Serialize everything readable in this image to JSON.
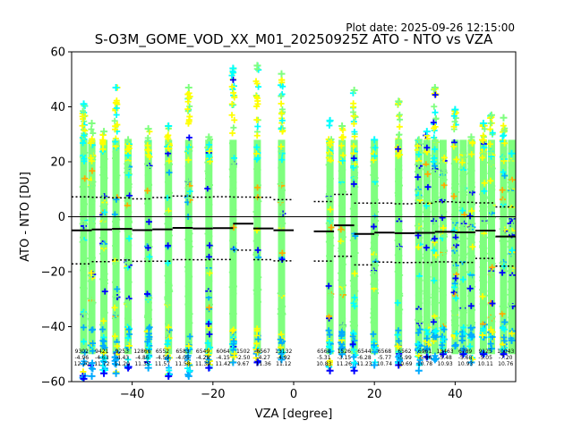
{
  "chart_data": {
    "type": "scatter",
    "plot_date": "Plot date: 2025-09-26 12:15:00",
    "title": "S-O3M_GOME_VOD_XX_M01_20250925Z ATO - NTO vs VZA",
    "xlabel": "VZA [degree]",
    "ylabel": "ATO - NTO [DU]",
    "xlim": [
      -55,
      55
    ],
    "ylim": [
      -60,
      60
    ],
    "xticks": [
      -40,
      -20,
      0,
      20,
      40
    ],
    "yticks": [
      -60,
      -40,
      -20,
      0,
      20,
      40,
      60
    ],
    "marker": "+",
    "colormap": [
      "#0000ff",
      "#00aaff",
      "#00ffff",
      "#7fff7f",
      "#ffff00",
      "#ffaa00"
    ],
    "zero_line": 0,
    "bins": [
      {
        "x": -52.5,
        "count": "9302",
        "mean": -4.96,
        "median": "-4.96",
        "std": "12.20",
        "mean_minus_std": -17.16,
        "mean_plus_std": 7.24
      },
      {
        "x": -47.5,
        "count": "9421",
        "mean": -4.63,
        "median": "-4.63",
        "std": "11.72",
        "mean_minus_std": -16.35,
        "mean_plus_std": 7.09
      },
      {
        "x": -42.5,
        "count": "9253",
        "mean": -4.43,
        "median": "-4.43",
        "std": "11.29",
        "mean_minus_std": -15.72,
        "mean_plus_std": 6.86
      },
      {
        "x": -37.5,
        "count": "12866",
        "mean": -4.86,
        "median": "-4.86",
        "std": "11.35",
        "mean_minus_std": -16.21,
        "mean_plus_std": 6.49
      },
      {
        "x": -32.5,
        "count": "6552",
        "mean": -4.59,
        "median": "-4.59",
        "std": "11.57",
        "mean_minus_std": -16.16,
        "mean_plus_std": 6.98
      },
      {
        "x": -27.5,
        "count": "6583",
        "mean": -4.05,
        "median": "-4.05",
        "std": "11.58",
        "mean_minus_std": -15.63,
        "mean_plus_std": 7.53
      },
      {
        "x": -22.5,
        "count": "6549",
        "mean": -4.28,
        "median": "-4.28",
        "std": "11.39",
        "mean_minus_std": -15.67,
        "mean_plus_std": 7.11
      },
      {
        "x": -17.5,
        "count": "6064",
        "mean": -4.15,
        "median": "-4.15",
        "std": "11.42",
        "mean_minus_std": -15.57,
        "mean_plus_std": 7.27
      },
      {
        "x": -12.5,
        "count": "1502",
        "mean": -2.5,
        "median": "-2.50",
        "std": "9.67",
        "mean_minus_std": -12.17,
        "mean_plus_std": 7.17
      },
      {
        "x": -7.5,
        "count": "6567",
        "mean": -4.27,
        "median": "-4.27",
        "std": "11.36",
        "mean_minus_std": -15.63,
        "mean_plus_std": 7.09
      },
      {
        "x": -2.5,
        "count": "13132",
        "mean": -4.92,
        "median": "-4.92",
        "std": "11.12",
        "mean_minus_std": -16.04,
        "mean_plus_std": 6.2
      },
      {
        "x": 7.5,
        "count": "6568",
        "mean": -5.31,
        "median": "-5.31",
        "std": "10.83",
        "mean_minus_std": -16.14,
        "mean_plus_std": 5.52
      },
      {
        "x": 12.5,
        "count": "1526",
        "mean": -3.15,
        "median": "-3.15",
        "std": "11.26",
        "mean_minus_std": -14.41,
        "mean_plus_std": 8.11
      },
      {
        "x": 17.5,
        "count": "6544",
        "mean": -6.28,
        "median": "-6.28",
        "std": "11.23",
        "mean_minus_std": -17.51,
        "mean_plus_std": 4.95
      },
      {
        "x": 22.5,
        "count": "6568",
        "mean": -5.77,
        "median": "-5.77",
        "std": "10.74",
        "mean_minus_std": -16.51,
        "mean_plus_std": 4.97
      },
      {
        "x": 27.5,
        "count": "6562",
        "mean": -5.99,
        "median": "-5.99",
        "std": "10.69",
        "mean_minus_std": -16.68,
        "mean_plus_std": 4.7
      },
      {
        "x": 32.5,
        "count": "6961",
        "mean": -5.86,
        "median": "-5.86",
        "std": "10.78",
        "mean_minus_std": -16.64,
        "mean_plus_std": 4.92
      },
      {
        "x": 37.5,
        "count": "13463",
        "mean": -5.48,
        "median": "-5.48",
        "std": "10.93",
        "mean_minus_std": -16.41,
        "mean_plus_std": 5.45
      },
      {
        "x": 42.5,
        "count": "6789",
        "mean": -5.68,
        "median": "-5.68",
        "std": "10.93",
        "mean_minus_std": -16.61,
        "mean_plus_std": 5.25
      },
      {
        "x": 47.5,
        "count": "9125",
        "mean": -5.05,
        "median": "-5.05",
        "std": "10.11",
        "mean_minus_std": -15.16,
        "mean_plus_std": 5.06
      },
      {
        "x": 52.5,
        "count": "10043",
        "mean": -7.2,
        "median": "-7.20",
        "std": "10.76",
        "mean_minus_std": -17.96,
        "mean_plus_std": 3.56
      }
    ],
    "scatter_columns": [
      {
        "x": -52,
        "ymin": -59,
        "ymax": 41
      },
      {
        "x": -50,
        "ymin": -58,
        "ymax": 34
      },
      {
        "x": -47,
        "ymin": -57,
        "ymax": 31
      },
      {
        "x": -44,
        "ymin": -57,
        "ymax": 47
      },
      {
        "x": -41,
        "ymin": -55,
        "ymax": 28
      },
      {
        "x": -36,
        "ymin": -55,
        "ymax": 32
      },
      {
        "x": -31,
        "ymin": -58,
        "ymax": 33
      },
      {
        "x": -26,
        "ymin": -58,
        "ymax": 47
      },
      {
        "x": -21,
        "ymin": -55,
        "ymax": 29
      },
      {
        "x": -15,
        "ymin": -53,
        "ymax": 54
      },
      {
        "x": -9,
        "ymin": -53,
        "ymax": 55
      },
      {
        "x": -3,
        "ymin": -52,
        "ymax": 52
      },
      {
        "x": 9,
        "ymin": -56,
        "ymax": 35
      },
      {
        "x": 12,
        "ymin": -50,
        "ymax": 33
      },
      {
        "x": 15,
        "ymin": -56,
        "ymax": 46
      },
      {
        "x": 20,
        "ymin": -54,
        "ymax": 28
      },
      {
        "x": 26,
        "ymin": -54,
        "ymax": 42
      },
      {
        "x": 31,
        "ymin": -56,
        "ymax": 28
      },
      {
        "x": 33,
        "ymin": -51,
        "ymax": 31
      },
      {
        "x": 35,
        "ymin": -52,
        "ymax": 47
      },
      {
        "x": 37,
        "ymin": -50,
        "ymax": 24
      },
      {
        "x": 40,
        "ymin": -47,
        "ymax": 39
      },
      {
        "x": 42,
        "ymin": -50,
        "ymax": 24
      },
      {
        "x": 44,
        "ymin": -53,
        "ymax": 29
      },
      {
        "x": 47,
        "ymin": -50,
        "ymax": 34
      },
      {
        "x": 49,
        "ymin": -48,
        "ymax": 37
      },
      {
        "x": 52,
        "ymin": -50,
        "ymax": 36
      },
      {
        "x": 54,
        "ymin": -45,
        "ymax": 23
      }
    ]
  }
}
